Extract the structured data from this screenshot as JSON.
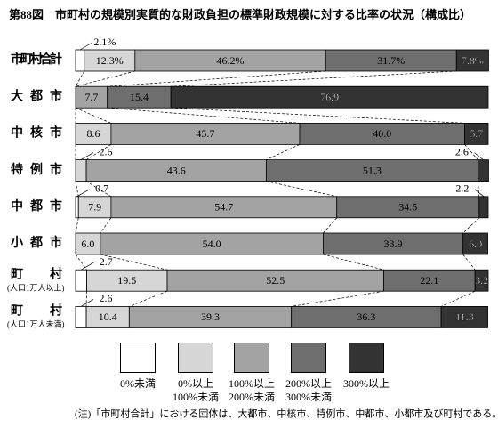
{
  "chart_data": {
    "type": "bar",
    "orientation": "horizontal",
    "stacked": true,
    "title": "第88図　市町村の規模別実質的な財政負担の標準財政規模に対する比率の状況（構成比）",
    "categories": [
      "市町村合計",
      "大都市",
      "中核市",
      "特例市",
      "中都市",
      "小都市",
      "町村",
      "町村"
    ],
    "category_notes": [
      null,
      null,
      null,
      null,
      null,
      null,
      "(人口1万人以上)",
      "(人口1万人未満)"
    ],
    "series": [
      {
        "name": "0%未満",
        "color": "#ffffff",
        "values": [
          2.1,
          0,
          0,
          0,
          0.7,
          0,
          2.7,
          2.6
        ],
        "value_labels": [
          "2.1%",
          null,
          null,
          null,
          "0.7",
          null,
          "2.7",
          "2.6"
        ]
      },
      {
        "name": "0%以上\n100%未満",
        "color": "#d6d6d6",
        "values": [
          12.3,
          0,
          8.6,
          2.6,
          7.9,
          6.0,
          19.5,
          10.4
        ],
        "value_labels": [
          "12.3%",
          null,
          "8.6",
          "2.6",
          "7.9",
          "6.0",
          "19.5",
          "10.4"
        ]
      },
      {
        "name": "100%以上\n200%未満",
        "color": "#a3a3a3",
        "values": [
          46.2,
          7.7,
          45.7,
          43.6,
          54.7,
          54.0,
          52.5,
          39.3
        ],
        "value_labels": [
          "46.2%",
          "7.7",
          "45.7",
          "43.6",
          "54.7",
          "54.0",
          "52.5",
          "39.3"
        ]
      },
      {
        "name": "200%以上\n300%未満",
        "color": "#6e6e6e",
        "values": [
          31.7,
          15.4,
          40.0,
          51.3,
          34.5,
          33.9,
          22.1,
          36.3
        ],
        "value_labels": [
          "31.7%",
          "15.4",
          "40.0",
          "51.3",
          "34.5",
          "33.9",
          "22.1",
          "36.3"
        ]
      },
      {
        "name": "300%以上",
        "color": "#333333",
        "values": [
          7.8,
          76.9,
          5.7,
          2.6,
          2.2,
          6.0,
          3.2,
          11.3
        ],
        "value_labels": [
          "7.8%",
          "76.9",
          "5.7",
          "2.6",
          "2.2",
          "6.0",
          "3.2",
          "11.3"
        ]
      }
    ],
    "xlim": [
      0,
      100
    ],
    "note": "(注)「市町村合計」における団体は、大都市、中核市、特例市、中都市、小都市及び町村である。"
  }
}
